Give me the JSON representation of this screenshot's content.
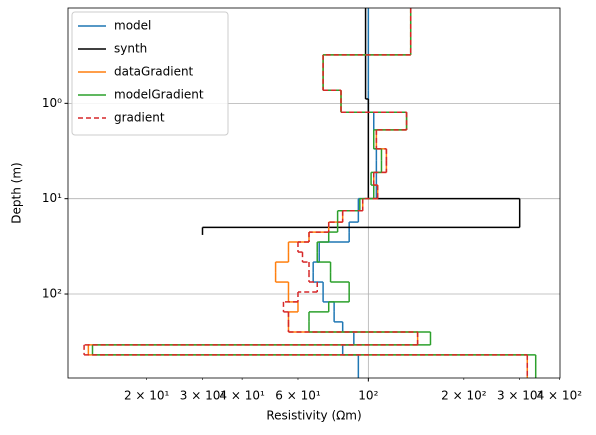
{
  "chart_data": {
    "type": "step",
    "x_label": "Resistivity (Ωm)",
    "y_label": "Depth (m)",
    "x_scale": "log",
    "y_scale": "log",
    "y_inverted": true,
    "xlim": [
      11.3,
      402
    ],
    "ylim": [
      0.1,
      760
    ],
    "xticks": [
      {
        "value": 100,
        "label": "10²"
      }
    ],
    "xminorticks": [
      {
        "value": 20,
        "label": "2 × 10¹"
      },
      {
        "value": 30,
        "label": "3 × 10¹"
      },
      {
        "value": 40,
        "label": "4 × 10¹"
      },
      {
        "value": 60,
        "label": "6 × 10¹"
      },
      {
        "value": 200,
        "label": "2 × 10²"
      },
      {
        "value": 300,
        "label": "3 × 10²"
      },
      {
        "value": 400,
        "label": "4 × 10²"
      }
    ],
    "yticks": [
      {
        "value": 1,
        "label": "10⁰"
      },
      {
        "value": 10,
        "label": "10¹"
      },
      {
        "value": 100,
        "label": "10²"
      }
    ],
    "grid": true,
    "legend": "upper left",
    "series": [
      {
        "name": "model",
        "color": "#1f77b4",
        "linestyle": "solid",
        "depths": [
          0.1,
          0.31,
          0.73,
          1.24,
          1.9,
          3.0,
          4.0,
          5.3,
          7.2,
          10,
          13.4,
          17.6,
          22.4,
          28.5,
          36.3,
          46.2,
          58.9,
          74.9,
          95.3,
          121,
          154,
          196,
          250,
          342,
          435,
          760
        ],
        "values": [
          100,
          100,
          100,
          104,
          104,
          106,
          106,
          106,
          106,
          93,
          93,
          87,
          87,
          70,
          70,
          67,
          67,
          72,
          72,
          78,
          78,
          83,
          90,
          83,
          93
        ]
      },
      {
        "name": "synth",
        "color": "#000000",
        "linestyle": "solid",
        "depths": [
          0.1,
          0.9,
          10,
          20,
          24
        ],
        "values": [
          98,
          100,
          300,
          30
        ]
      },
      {
        "name": "dataGradient",
        "color": "#ff7f0e",
        "linestyle": "solid",
        "depths": [
          0.1,
          0.31,
          0.73,
          1.24,
          1.9,
          3.0,
          4.0,
          5.3,
          7.2,
          10,
          13.4,
          17.6,
          22.4,
          28.5,
          36.3,
          46.2,
          58.9,
          74.9,
          95.3,
          121,
          154,
          196,
          250,
          342,
          435,
          760
        ],
        "values": [
          136,
          72,
          82,
          132,
          106,
          114,
          114,
          104,
          107,
          96,
          83,
          75,
          65,
          56,
          56,
          51,
          51,
          56,
          56,
          60,
          56,
          56,
          143,
          13.1,
          317
        ]
      },
      {
        "name": "modelGradient",
        "color": "#2ca02c",
        "linestyle": "solid",
        "depths": [
          0.1,
          0.31,
          0.73,
          1.24,
          1.9,
          3.0,
          4.0,
          5.3,
          7.2,
          10,
          13.4,
          17.6,
          22.4,
          28.5,
          36.3,
          46.2,
          58.9,
          74.9,
          95.3,
          121,
          154,
          196,
          250,
          342,
          435,
          760
        ],
        "values": [
          136,
          72,
          82,
          132,
          104,
          110,
          110,
          102,
          104,
          94,
          80,
          80,
          75,
          69,
          69,
          76,
          76,
          87,
          87,
          75,
          65,
          65,
          157,
          13.5,
          337
        ]
      },
      {
        "name": "gradient",
        "color": "#d62728",
        "linestyle": "dashed",
        "depths": [
          0.1,
          0.31,
          0.73,
          1.24,
          1.9,
          3.0,
          4.0,
          5.3,
          7.2,
          10,
          13.4,
          17.6,
          22.4,
          28.5,
          36.3,
          46.2,
          58.9,
          74.9,
          95.3,
          121,
          154,
          196,
          250,
          342,
          435,
          760
        ],
        "values": [
          136,
          72,
          82,
          132,
          106,
          114,
          114,
          104,
          107,
          96,
          83,
          75,
          65,
          60,
          62,
          65,
          65,
          69,
          60,
          54,
          56,
          56,
          143,
          12.7,
          317
        ]
      }
    ]
  }
}
